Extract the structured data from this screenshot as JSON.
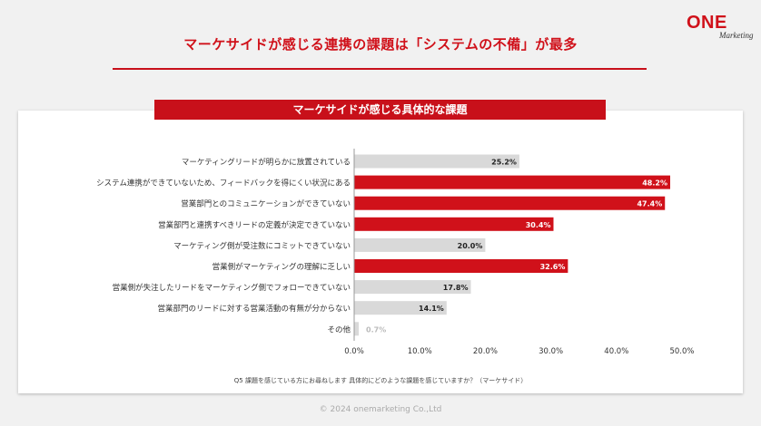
{
  "brand": {
    "logo_main": "ONE",
    "logo_sub": "Marketing"
  },
  "headline": "マーケサイドが感じる連携の課題は「システムの不備」が最多",
  "footnote": "Q5  課題を感じている方にお尋ねします 具体的にどのような課題を感じていますか？（マーケサイド）",
  "copyright": "© 2024 onemarketing Co.,Ltd",
  "colors": {
    "highlight": "#d0111a",
    "normal": "#d9d9d9",
    "label_light": "#ffffff",
    "label_dark": "#222222",
    "label_faint": "#bbbbbb"
  },
  "chart_data": {
    "type": "bar",
    "orientation": "horizontal",
    "title": "マーケサイドが感じる具体的な課題",
    "categories": [
      "マーケティングリードが明らかに放置されている",
      "システム連携ができていないため、フィードバックを得にくい状況にある",
      "営業部門とのコミュニケーションができていない",
      "営業部門と連携すべきリードの定義が決定できていない",
      "マーケティング側が受注数にコミットできていない",
      "営業側がマーケティングの理解に乏しい",
      "営業側が失注したリードをマーケティング側でフォローできていない",
      "営業部門のリードに対する営業活動の有無が分からない",
      "その他"
    ],
    "values": [
      25.2,
      48.2,
      47.4,
      30.4,
      20.0,
      32.6,
      17.8,
      14.1,
      0.7
    ],
    "value_labels": [
      "25.2%",
      "48.2%",
      "47.4%",
      "30.4%",
      "20.0%",
      "32.6%",
      "17.8%",
      "14.1%",
      "0.7%"
    ],
    "highlighted": [
      false,
      true,
      true,
      true,
      false,
      true,
      false,
      false,
      false
    ],
    "xlim": [
      0,
      50
    ],
    "xticks": [
      "0.0%",
      "10.0%",
      "20.0%",
      "30.0%",
      "40.0%",
      "50.0%"
    ],
    "xtick_values": [
      0,
      10,
      20,
      30,
      40,
      50
    ],
    "xlabel": "",
    "ylabel": "",
    "grid": false
  }
}
